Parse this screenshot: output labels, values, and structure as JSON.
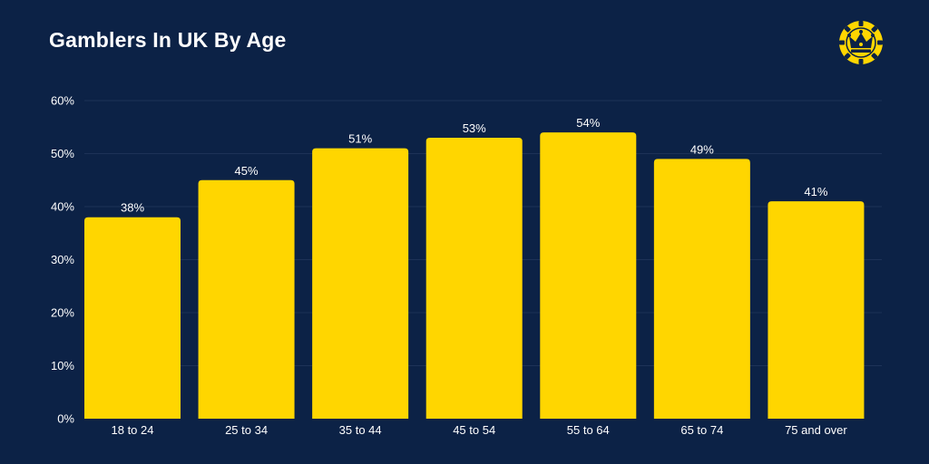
{
  "colors": {
    "background": "#0c2246",
    "bar": "#ffd600",
    "text": "#ffffff",
    "grid": "#1d3257",
    "logo": "#ffd600",
    "logo_inner": "#0c2246"
  },
  "logo": {
    "icon": "crown-chip-icon"
  },
  "chart_data": {
    "type": "bar",
    "title": "Gamblers In UK By Age",
    "xlabel": "",
    "ylabel": "",
    "categories": [
      "18 to 24",
      "25 to 34",
      "35 to 44",
      "45 to 54",
      "55 to 64",
      "65 to 74",
      "75 and over"
    ],
    "values": [
      38,
      45,
      51,
      53,
      54,
      49,
      41
    ],
    "value_labels": [
      "38%",
      "45%",
      "51%",
      "53%",
      "54%",
      "49%",
      "41%"
    ],
    "ylim": [
      0,
      60
    ],
    "yticks": [
      0,
      10,
      20,
      30,
      40,
      50,
      60
    ],
    "ytick_labels": [
      "0%",
      "10%",
      "20%",
      "30%",
      "40%",
      "50%",
      "60%"
    ],
    "grid": true,
    "legend": "none"
  }
}
